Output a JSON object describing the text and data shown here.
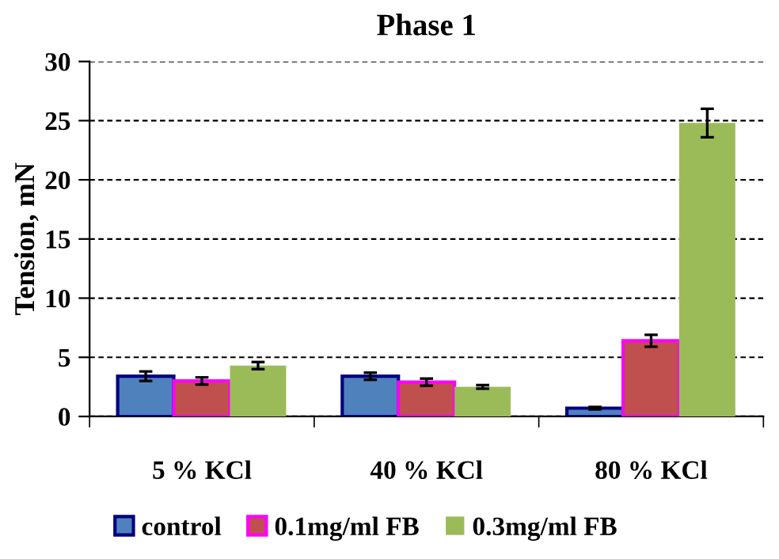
{
  "chart_data": {
    "type": "bar",
    "title": "Phase 1",
    "ylabel": "Tension, mN",
    "categories": [
      "5 % KCl",
      "40 % KCl",
      "80 % KCl"
    ],
    "series": [
      {
        "name": "control",
        "color": "#4f81bd",
        "values": [
          3.4,
          3.4,
          0.7
        ],
        "errors": [
          0.4,
          0.3,
          0.1
        ]
      },
      {
        "name": "0.1mg/ml FB",
        "color": "#c0504d",
        "values": [
          3.0,
          2.9,
          6.4
        ],
        "errors": [
          0.3,
          0.3,
          0.5
        ]
      },
      {
        "name": "0.3mg/ml FB",
        "color": "#9bbb59",
        "values": [
          4.3,
          2.5,
          24.8
        ],
        "errors": [
          0.3,
          0.15,
          1.2
        ]
      }
    ],
    "ylim": [
      0,
      30
    ],
    "yticks": [
      0,
      5,
      10,
      15,
      20,
      25,
      30
    ],
    "grid": "y",
    "legend": "bottom"
  }
}
